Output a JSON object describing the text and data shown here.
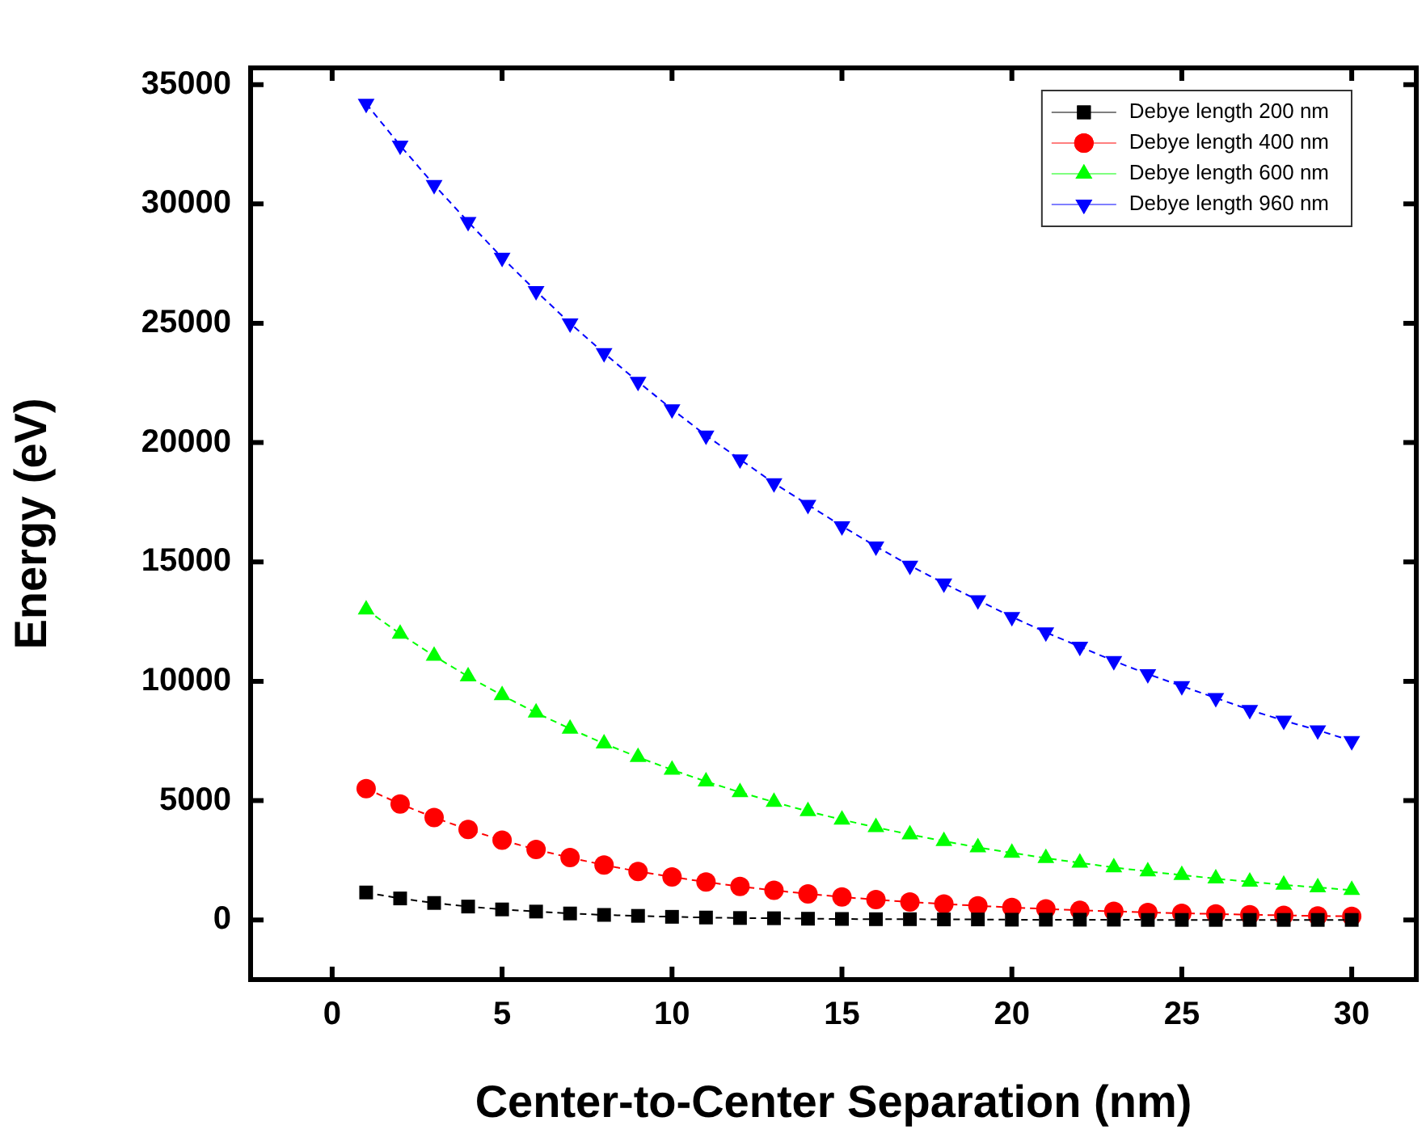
{
  "chart_data": {
    "type": "line",
    "xlabel": "Center-to-Center Separation (nm)",
    "ylabel": "Energy (eV)",
    "x": [
      1,
      2,
      3,
      4,
      5,
      6,
      7,
      8,
      9,
      10,
      11,
      12,
      13,
      14,
      15,
      16,
      17,
      18,
      19,
      20,
      21,
      22,
      23,
      24,
      25,
      26,
      27,
      28,
      29,
      30
    ],
    "xlim": [
      -2.4,
      31.9
    ],
    "xticks": [
      0,
      5,
      10,
      15,
      20,
      25,
      30
    ],
    "ylim": [
      -2500,
      35700
    ],
    "yticks": [
      0,
      5000,
      10000,
      15000,
      20000,
      25000,
      30000,
      35000
    ],
    "legend": "top right",
    "line_style": "dashed",
    "grid": false,
    "series": [
      {
        "name": "Debye length 200 nm",
        "color": "#000000",
        "marker": "square",
        "values": [
          1150,
          900,
          710,
          560,
          440,
          350,
          270,
          210,
          170,
          130,
          100,
          80,
          70,
          50,
          40,
          30,
          30,
          20,
          20,
          10,
          10,
          10,
          10,
          0,
          0,
          0,
          0,
          0,
          0,
          0
        ]
      },
      {
        "name": "Debye length 400 nm",
        "color": "#ff0000",
        "marker": "circle",
        "values": [
          5500,
          4860,
          4290,
          3790,
          3340,
          2950,
          2610,
          2300,
          2030,
          1800,
          1590,
          1400,
          1240,
          1090,
          960,
          850,
          750,
          670,
          590,
          520,
          460,
          400,
          360,
          310,
          280,
          250,
          220,
          190,
          170,
          150
        ]
      },
      {
        "name": "Debye length 600 nm",
        "color": "#00ff00",
        "marker": "triangle",
        "values": [
          13000,
          11990,
          11060,
          10200,
          9410,
          8680,
          8010,
          7390,
          6820,
          6290,
          5800,
          5350,
          4940,
          4550,
          4200,
          3880,
          3580,
          3300,
          3040,
          2810,
          2590,
          2390,
          2200,
          2030,
          1880,
          1730,
          1600,
          1470,
          1360,
          1250
        ]
      },
      {
        "name": "Debye length 960 nm",
        "color": "#0000ff",
        "marker": "triangle-down",
        "values": [
          34200,
          32450,
          30800,
          29250,
          27750,
          26350,
          25000,
          23750,
          22550,
          21400,
          20300,
          19300,
          18300,
          17400,
          16500,
          15650,
          14850,
          14100,
          13400,
          12700,
          12050,
          11450,
          10850,
          10300,
          9800,
          9300,
          8800,
          8350,
          7950,
          7500
        ]
      }
    ]
  }
}
